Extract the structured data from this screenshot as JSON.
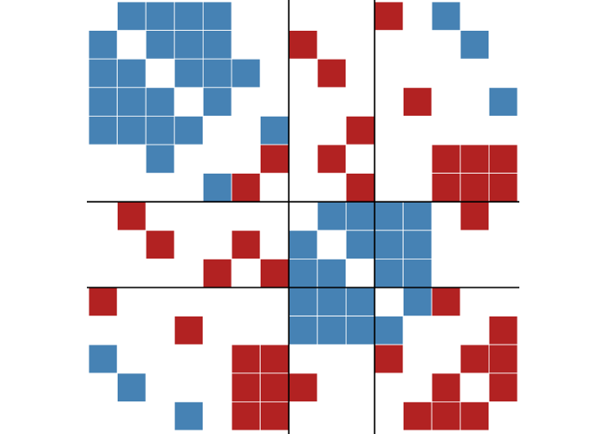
{
  "chart_data": {
    "type": "heatmap",
    "title": "",
    "xlabel": "",
    "ylabel": "",
    "n_rows": 15,
    "n_cols": 15,
    "grid": false,
    "legend": "none",
    "colors": {
      "positive": "#4682B4",
      "negative": "#B22222",
      "zero": "#FFFFFF",
      "divider": "#000000"
    },
    "block_boundaries": [
      7,
      10
    ],
    "values": [
      [
        0,
        1,
        1,
        1,
        1,
        0,
        0,
        0,
        0,
        0,
        -1,
        0,
        1,
        0,
        0
      ],
      [
        1,
        0,
        1,
        1,
        1,
        0,
        0,
        -1,
        0,
        0,
        0,
        0,
        0,
        1,
        0
      ],
      [
        1,
        1,
        0,
        1,
        1,
        1,
        0,
        0,
        -1,
        0,
        0,
        0,
        0,
        0,
        0
      ],
      [
        1,
        1,
        1,
        0,
        1,
        0,
        0,
        0,
        0,
        0,
        0,
        -1,
        0,
        0,
        1
      ],
      [
        1,
        1,
        1,
        1,
        0,
        0,
        1,
        0,
        0,
        -1,
        0,
        0,
        0,
        0,
        0
      ],
      [
        0,
        0,
        1,
        0,
        0,
        0,
        -1,
        0,
        -1,
        0,
        0,
        0,
        -1,
        -1,
        -1
      ],
      [
        0,
        0,
        0,
        0,
        1,
        -1,
        0,
        0,
        0,
        -1,
        0,
        0,
        -1,
        -1,
        -1
      ],
      [
        0,
        -1,
        0,
        0,
        0,
        0,
        0,
        0,
        1,
        1,
        1,
        1,
        0,
        -1,
        0
      ],
      [
        0,
        0,
        -1,
        0,
        0,
        -1,
        0,
        1,
        0,
        1,
        1,
        1,
        0,
        0,
        0
      ],
      [
        0,
        0,
        0,
        0,
        -1,
        0,
        -1,
        1,
        1,
        0,
        1,
        1,
        0,
        0,
        0
      ],
      [
        -1,
        0,
        0,
        0,
        0,
        0,
        0,
        1,
        1,
        1,
        0,
        1,
        -1,
        0,
        0
      ],
      [
        0,
        0,
        0,
        -1,
        0,
        0,
        0,
        1,
        1,
        1,
        1,
        0,
        0,
        0,
        -1
      ],
      [
        1,
        0,
        0,
        0,
        0,
        -1,
        -1,
        0,
        0,
        0,
        -1,
        0,
        0,
        -1,
        -1
      ],
      [
        0,
        1,
        0,
        0,
        0,
        -1,
        -1,
        -1,
        0,
        0,
        0,
        0,
        -1,
        0,
        -1
      ],
      [
        0,
        0,
        0,
        1,
        0,
        -1,
        -1,
        0,
        0,
        0,
        0,
        -1,
        -1,
        -1,
        0
      ]
    ]
  }
}
